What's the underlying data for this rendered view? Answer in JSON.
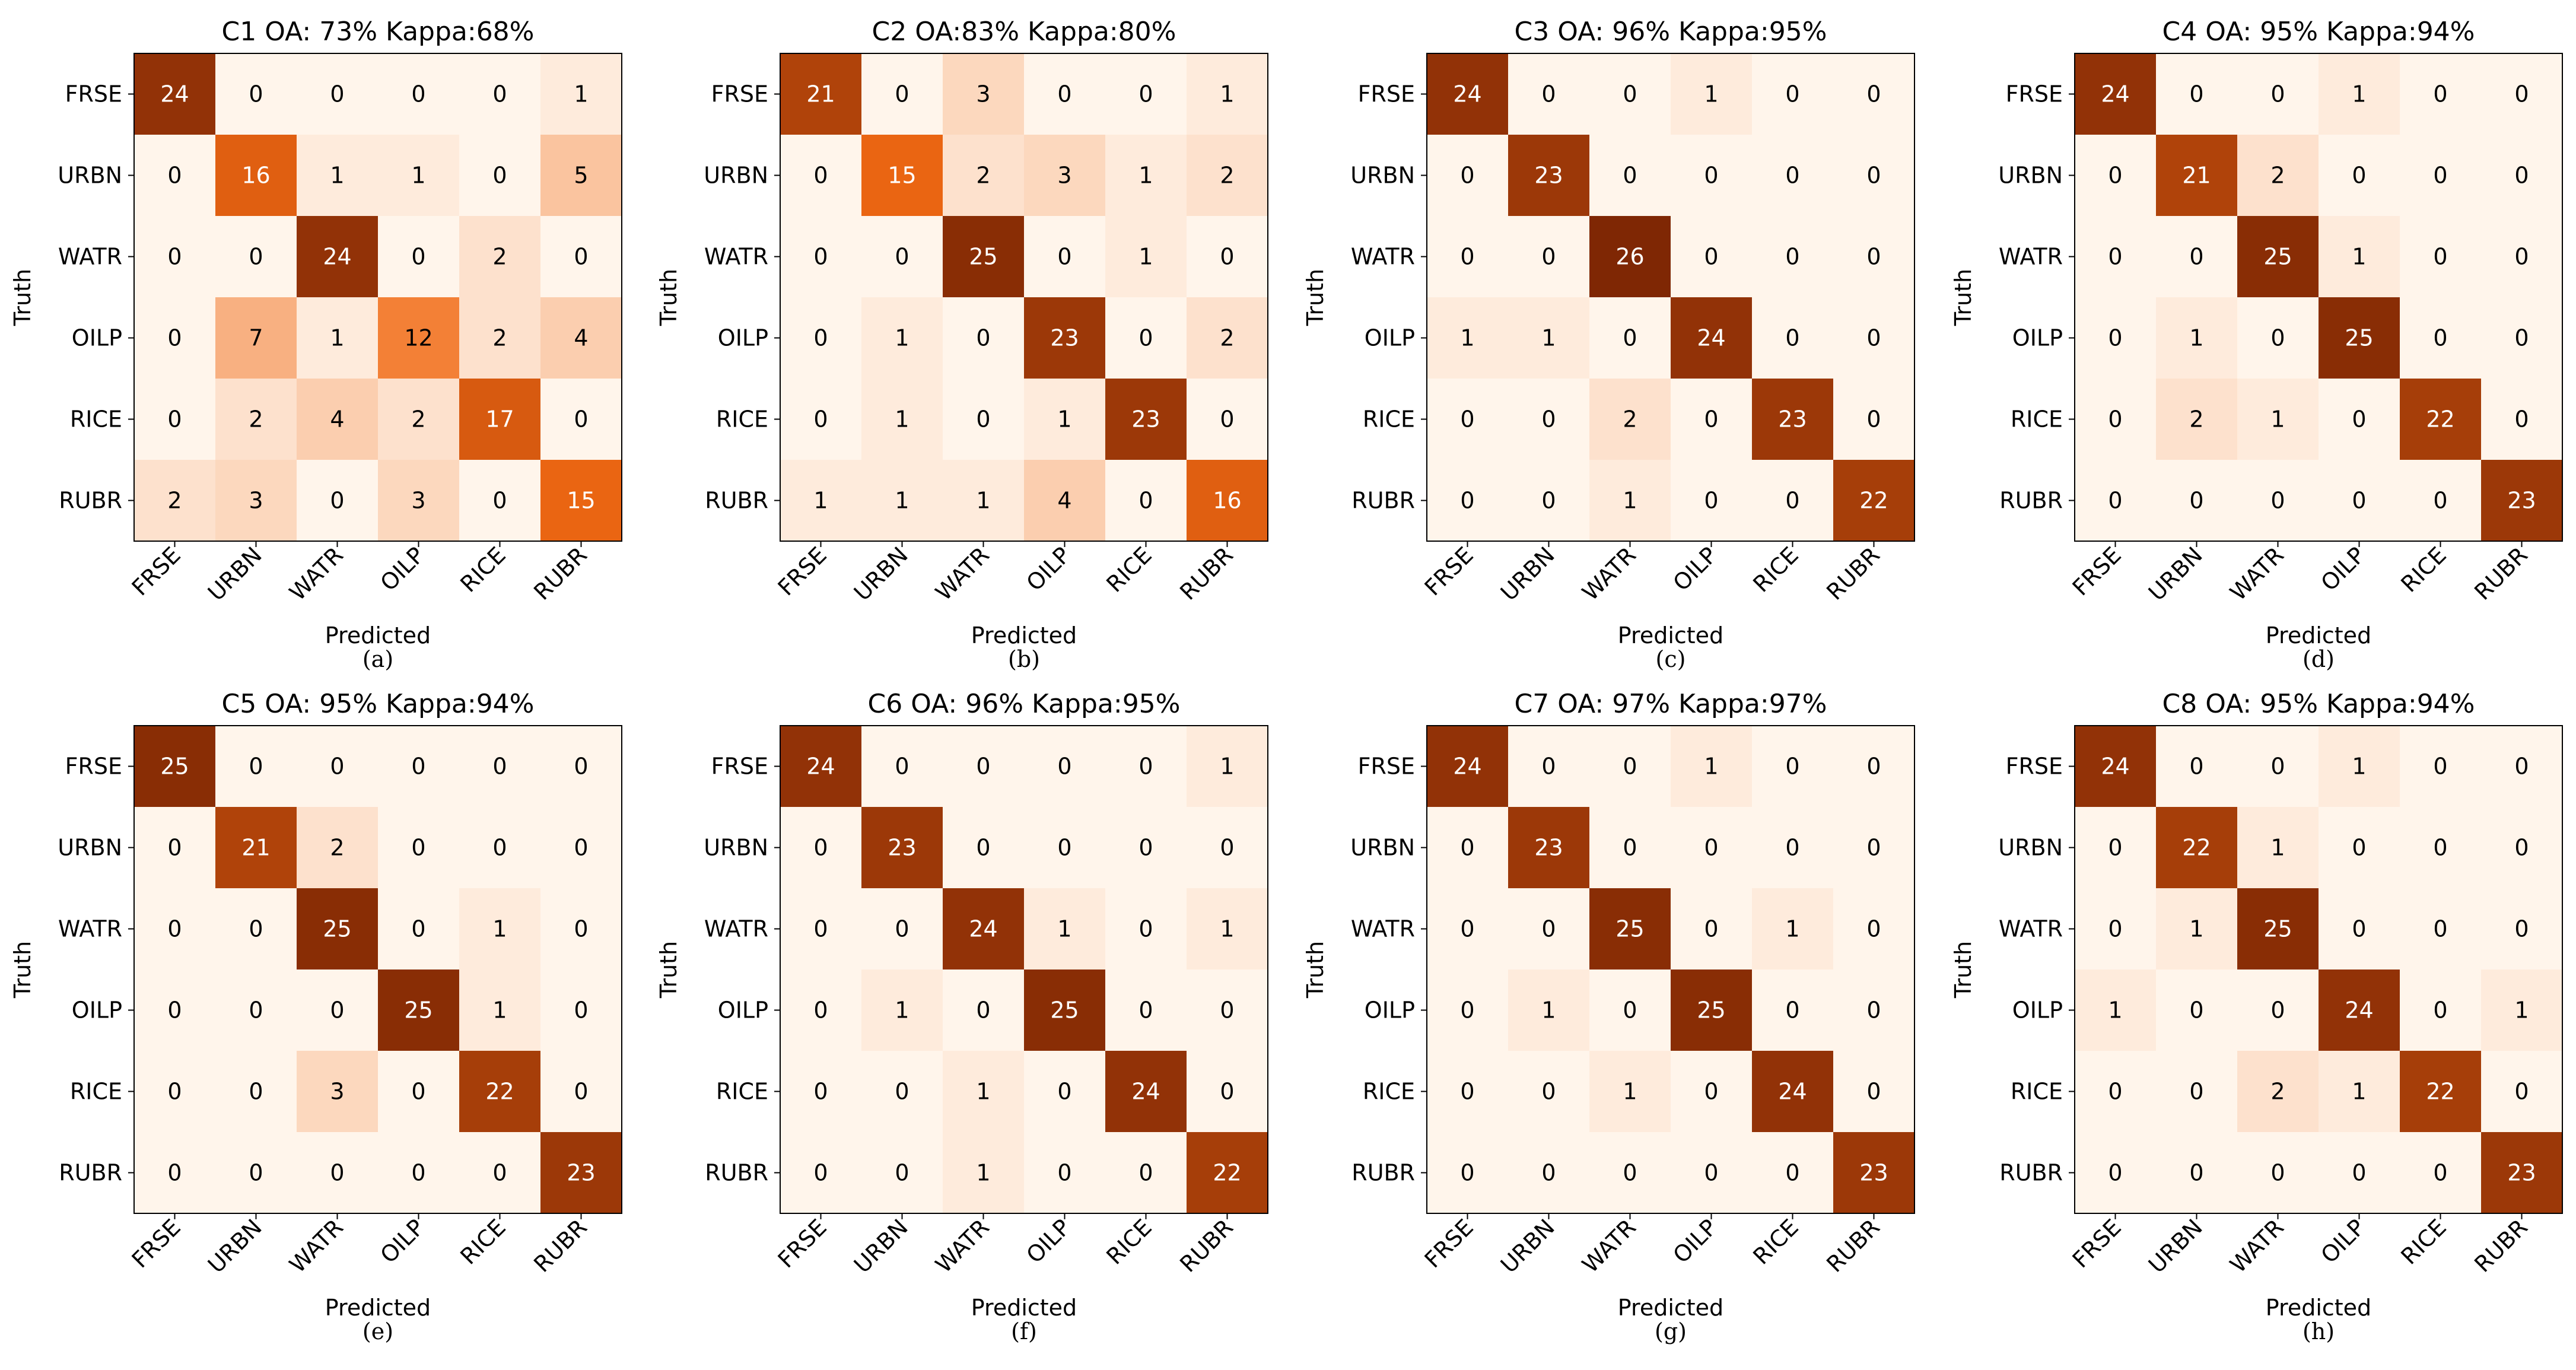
{
  "chart_data": [
    {
      "type": "heatmap",
      "title": "C1  OA:  73%  Kappa:68%",
      "caption": "(a)",
      "xlabel": "Predicted",
      "ylabel": "Truth",
      "x_categories": [
        "FRSE",
        "URBN",
        "WATR",
        "OILP",
        "RICE",
        "RUBR"
      ],
      "y_categories": [
        "FRSE",
        "URBN",
        "WATR",
        "OILP",
        "RICE",
        "RUBR"
      ],
      "values": [
        [
          24,
          0,
          0,
          0,
          0,
          1
        ],
        [
          0,
          16,
          1,
          1,
          0,
          5
        ],
        [
          0,
          0,
          24,
          0,
          2,
          0
        ],
        [
          0,
          7,
          1,
          12,
          2,
          4
        ],
        [
          0,
          2,
          4,
          2,
          17,
          0
        ],
        [
          2,
          3,
          0,
          3,
          0,
          15
        ]
      ]
    },
    {
      "type": "heatmap",
      "title": "C2 OA:83%  Kappa:80%",
      "caption": "(b)",
      "xlabel": "Predicted",
      "ylabel": "Truth",
      "x_categories": [
        "FRSE",
        "URBN",
        "WATR",
        "OILP",
        "RICE",
        "RUBR"
      ],
      "y_categories": [
        "FRSE",
        "URBN",
        "WATR",
        "OILP",
        "RICE",
        "RUBR"
      ],
      "values": [
        [
          21,
          0,
          3,
          0,
          0,
          1
        ],
        [
          0,
          15,
          2,
          3,
          1,
          2
        ],
        [
          0,
          0,
          25,
          0,
          1,
          0
        ],
        [
          0,
          1,
          0,
          23,
          0,
          2
        ],
        [
          0,
          1,
          0,
          1,
          23,
          0
        ],
        [
          1,
          1,
          1,
          4,
          0,
          16
        ]
      ]
    },
    {
      "type": "heatmap",
      "title": "C3 OA: 96%  Kappa:95%",
      "caption": "(c)",
      "xlabel": "Predicted",
      "ylabel": "Truth",
      "x_categories": [
        "FRSE",
        "URBN",
        "WATR",
        "OILP",
        "RICE",
        "RUBR"
      ],
      "y_categories": [
        "FRSE",
        "URBN",
        "WATR",
        "OILP",
        "RICE",
        "RUBR"
      ],
      "values": [
        [
          24,
          0,
          0,
          1,
          0,
          0
        ],
        [
          0,
          23,
          0,
          0,
          0,
          0
        ],
        [
          0,
          0,
          26,
          0,
          0,
          0
        ],
        [
          1,
          1,
          0,
          24,
          0,
          0
        ],
        [
          0,
          0,
          2,
          0,
          23,
          0
        ],
        [
          0,
          0,
          1,
          0,
          0,
          22
        ]
      ]
    },
    {
      "type": "heatmap",
      "title": "C4 OA: 95% Kappa:94%",
      "caption": "(d)",
      "xlabel": "Predicted",
      "ylabel": "Truth",
      "x_categories": [
        "FRSE",
        "URBN",
        "WATR",
        "OILP",
        "RICE",
        "RUBR"
      ],
      "y_categories": [
        "FRSE",
        "URBN",
        "WATR",
        "OILP",
        "RICE",
        "RUBR"
      ],
      "values": [
        [
          24,
          0,
          0,
          1,
          0,
          0
        ],
        [
          0,
          21,
          2,
          0,
          0,
          0
        ],
        [
          0,
          0,
          25,
          1,
          0,
          0
        ],
        [
          0,
          1,
          0,
          25,
          0,
          0
        ],
        [
          0,
          2,
          1,
          0,
          22,
          0
        ],
        [
          0,
          0,
          0,
          0,
          0,
          23
        ]
      ]
    },
    {
      "type": "heatmap",
      "title": "C5 OA:  95%  Kappa:94%",
      "caption": "(e)",
      "xlabel": "Predicted",
      "ylabel": "Truth",
      "x_categories": [
        "FRSE",
        "URBN",
        "WATR",
        "OILP",
        "RICE",
        "RUBR"
      ],
      "y_categories": [
        "FRSE",
        "URBN",
        "WATR",
        "OILP",
        "RICE",
        "RUBR"
      ],
      "values": [
        [
          25,
          0,
          0,
          0,
          0,
          0
        ],
        [
          0,
          21,
          2,
          0,
          0,
          0
        ],
        [
          0,
          0,
          25,
          0,
          1,
          0
        ],
        [
          0,
          0,
          0,
          25,
          1,
          0
        ],
        [
          0,
          0,
          3,
          0,
          22,
          0
        ],
        [
          0,
          0,
          0,
          0,
          0,
          23
        ]
      ]
    },
    {
      "type": "heatmap",
      "title": "C6 OA:  96%  Kappa:95%",
      "caption": "(f)",
      "xlabel": "Predicted",
      "ylabel": "Truth",
      "x_categories": [
        "FRSE",
        "URBN",
        "WATR",
        "OILP",
        "RICE",
        "RUBR"
      ],
      "y_categories": [
        "FRSE",
        "URBN",
        "WATR",
        "OILP",
        "RICE",
        "RUBR"
      ],
      "values": [
        [
          24,
          0,
          0,
          0,
          0,
          1
        ],
        [
          0,
          23,
          0,
          0,
          0,
          0
        ],
        [
          0,
          0,
          24,
          1,
          0,
          1
        ],
        [
          0,
          1,
          0,
          25,
          0,
          0
        ],
        [
          0,
          0,
          1,
          0,
          24,
          0
        ],
        [
          0,
          0,
          1,
          0,
          0,
          22
        ]
      ]
    },
    {
      "type": "heatmap",
      "title": "C7 OA:  97%  Kappa:97%",
      "caption": "(g)",
      "xlabel": "Predicted",
      "ylabel": "Truth",
      "x_categories": [
        "FRSE",
        "URBN",
        "WATR",
        "OILP",
        "RICE",
        "RUBR"
      ],
      "y_categories": [
        "FRSE",
        "URBN",
        "WATR",
        "OILP",
        "RICE",
        "RUBR"
      ],
      "values": [
        [
          24,
          0,
          0,
          1,
          0,
          0
        ],
        [
          0,
          23,
          0,
          0,
          0,
          0
        ],
        [
          0,
          0,
          25,
          0,
          1,
          0
        ],
        [
          0,
          1,
          0,
          25,
          0,
          0
        ],
        [
          0,
          0,
          1,
          0,
          24,
          0
        ],
        [
          0,
          0,
          0,
          0,
          0,
          23
        ]
      ]
    },
    {
      "type": "heatmap",
      "title": "C8 OA:  95%  Kappa:94%",
      "caption": "(h)",
      "xlabel": "Predicted",
      "ylabel": "Truth",
      "x_categories": [
        "FRSE",
        "URBN",
        "WATR",
        "OILP",
        "RICE",
        "RUBR"
      ],
      "y_categories": [
        "FRSE",
        "URBN",
        "WATR",
        "OILP",
        "RICE",
        "RUBR"
      ],
      "values": [
        [
          24,
          0,
          0,
          1,
          0,
          0
        ],
        [
          0,
          22,
          1,
          0,
          0,
          0
        ],
        [
          0,
          1,
          25,
          0,
          0,
          0
        ],
        [
          1,
          0,
          0,
          24,
          0,
          1
        ],
        [
          0,
          0,
          2,
          1,
          22,
          0
        ],
        [
          0,
          0,
          0,
          0,
          0,
          23
        ]
      ]
    }
  ],
  "colormap": {
    "name": "Oranges",
    "light": "#fff5eb",
    "mid": "#f16913",
    "dark": "#7f2704",
    "vmax": 26
  }
}
